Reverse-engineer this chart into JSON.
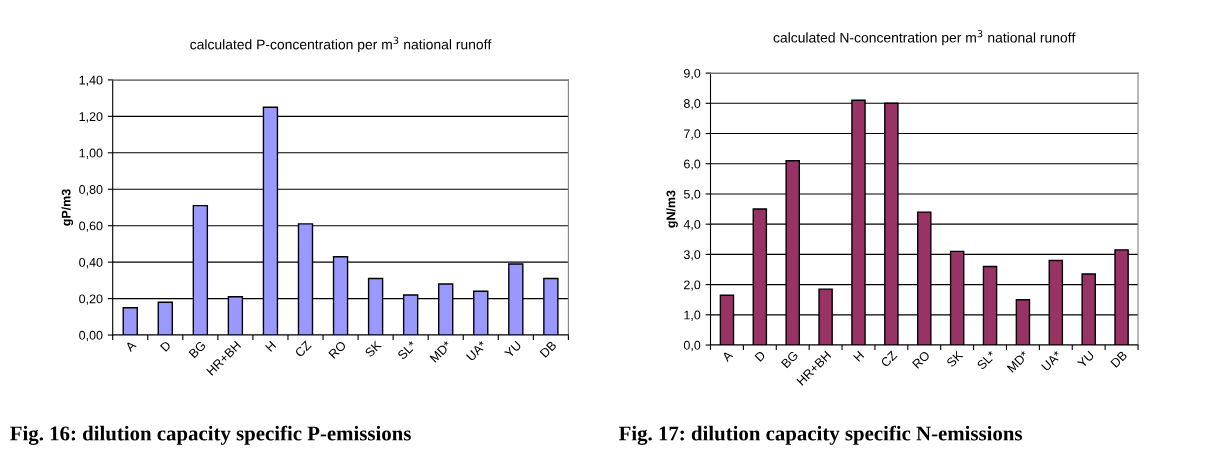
{
  "chart_data": [
    {
      "type": "bar",
      "title": "calculated P-concentration per m$^{3}$ national runoff",
      "ylabel": "gP/m3",
      "categories": [
        "A",
        "D",
        "BG",
        "HR+BH",
        "H",
        "CZ",
        "RO",
        "SK",
        "SL*",
        "MD*",
        "UA*",
        "YU",
        "DB"
      ],
      "values": [
        0.15,
        0.18,
        0.71,
        0.21,
        1.25,
        0.61,
        0.43,
        0.31,
        0.22,
        0.28,
        0.24,
        0.39,
        0.31
      ],
      "color": "#9999ff",
      "ylim": [
        0,
        1.4
      ],
      "yticks": [
        {
          "value": 0,
          "label": "0,00"
        },
        {
          "value": 0.2,
          "label": "0,20"
        },
        {
          "value": 0.4,
          "label": "0,40"
        },
        {
          "value": 0.6,
          "label": "0,60"
        },
        {
          "value": 0.8,
          "label": "0,80"
        },
        {
          "value": 1.0,
          "label": "1,00"
        },
        {
          "value": 1.2,
          "label": "1,20"
        },
        {
          "value": 1.4,
          "label": "1,40"
        }
      ],
      "grid": "y",
      "annotations": [
        "Fig. 16: dilution capacity specific P-emissions"
      ]
    },
    {
      "type": "bar",
      "title": "calculated N-concentration per m$^{3}$ national runoff",
      "ylabel": "gN/m3",
      "categories": [
        "A",
        "D",
        "BG",
        "HR+BH",
        "H",
        "CZ",
        "RO",
        "SK",
        "SL*",
        "MD*",
        "UA*",
        "YU",
        "DB"
      ],
      "values": [
        1.65,
        4.5,
        6.1,
        1.85,
        8.1,
        8.0,
        4.4,
        3.1,
        2.6,
        1.5,
        2.8,
        2.35,
        3.15
      ],
      "color": "#993366",
      "ylim": [
        0,
        9
      ],
      "yticks": [
        {
          "value": 0,
          "label": "0,0"
        },
        {
          "value": 1,
          "label": "1,0"
        },
        {
          "value": 2,
          "label": "2,0"
        },
        {
          "value": 3,
          "label": "3,0"
        },
        {
          "value": 4,
          "label": "4,0"
        },
        {
          "value": 5,
          "label": "5,0"
        },
        {
          "value": 6,
          "label": "6,0"
        },
        {
          "value": 7,
          "label": "7,0"
        },
        {
          "value": 8,
          "label": "8,0"
        },
        {
          "value": 9,
          "label": "9,0"
        }
      ],
      "grid": "y",
      "annotations": [
        "Fig. 17: dilution capacity specific N-emissions"
      ]
    }
  ]
}
